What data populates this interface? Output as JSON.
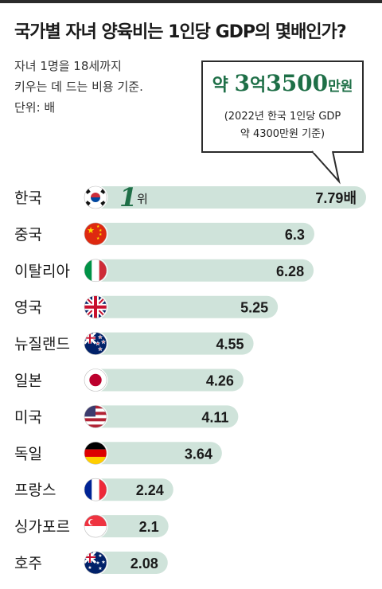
{
  "title": "국가별 자녀 양육비는 1인당 GDP의 몇배인가?",
  "subtitle_lines": [
    "자녀 1명을 18세까지",
    "키우는 데 드는 비용 기준.",
    "단위: 배"
  ],
  "callout": {
    "prefix": "약",
    "num1": "3",
    "unit1": "억",
    "num2": "3500",
    "unit2": "만원",
    "note_line1": "(2022년 한국 1인당 GDP",
    "note_line2": "약 4300만원 기준)"
  },
  "rank_label": {
    "num": "1",
    "suffix": "위"
  },
  "colors": {
    "bar": "#cfe3da",
    "value_text": "#1a1a1a",
    "callout_text": "#1e6f47",
    "rank_num": "#1e6f47"
  },
  "chart_data": {
    "type": "bar",
    "orientation": "horizontal",
    "categories": [
      "한국",
      "중국",
      "이탈리아",
      "영국",
      "뉴질랜드",
      "일본",
      "미국",
      "독일",
      "프랑스",
      "싱가포르",
      "호주"
    ],
    "values": [
      7.79,
      6.3,
      6.28,
      5.25,
      4.55,
      4.26,
      4.11,
      3.64,
      2.24,
      2.1,
      2.08
    ],
    "value_labels": [
      "7.79배",
      "6.3",
      "6.28",
      "5.25",
      "4.55",
      "4.26",
      "4.11",
      "3.64",
      "2.24",
      "2.1",
      "2.08"
    ],
    "flags": [
      "korea-flag-icon",
      "china-flag-icon",
      "italy-flag-icon",
      "uk-flag-icon",
      "new-zealand-flag-icon",
      "japan-flag-icon",
      "usa-flag-icon",
      "germany-flag-icon",
      "france-flag-icon",
      "singapore-flag-icon",
      "australia-flag-icon"
    ],
    "xlim": [
      0,
      7.79
    ]
  }
}
